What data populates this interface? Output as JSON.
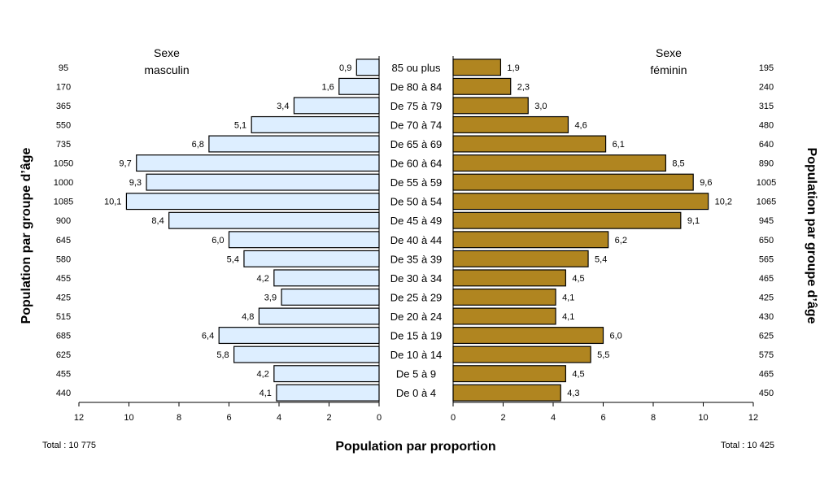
{
  "chart_data": {
    "type": "bar",
    "subtype": "population-pyramid",
    "xlabel": "Population par proportion",
    "ylabel_left": "Population par groupe d’âge",
    "ylabel_right": "Population par groupe d’âge",
    "xlim": [
      0,
      12
    ],
    "x_ticks": [
      "0",
      "2",
      "4",
      "6",
      "8",
      "10",
      "12"
    ],
    "categories": [
      "85 ou plus",
      "De 80 à 84",
      "De 75 à 79",
      "De 70 à 74",
      "De 65 à 69",
      "De 60 à 64",
      "De 55 à 59",
      "De 50 à 54",
      "De 45 à 49",
      "De 40 à 44",
      "De 35 à 39",
      "De 30 à 34",
      "De 25 à 29",
      "De 20 à 24",
      "De 15 à 19",
      "De 10 à 14",
      "De 5 à 9",
      "De 0 à 4"
    ],
    "series": [
      {
        "name": "Sexe masculin",
        "side": "left",
        "color": "#ddeeff",
        "values": [
          0.9,
          1.6,
          3.4,
          5.1,
          6.8,
          9.7,
          9.3,
          10.1,
          8.4,
          6.0,
          5.4,
          4.2,
          3.9,
          4.8,
          6.4,
          5.8,
          4.2,
          4.1
        ],
        "value_labels": [
          "0,9",
          "1,6",
          "3,4",
          "5,1",
          "6,8",
          "9,7",
          "9,3",
          "10,1",
          "8,4",
          "6,0",
          "5,4",
          "4,2",
          "3,9",
          "4,8",
          "6,4",
          "5,8",
          "4,2",
          "4,1"
        ],
        "counts": [
          "95",
          "170",
          "365",
          "550",
          "735",
          "1050",
          "1000",
          "1085",
          "900",
          "645",
          "580",
          "455",
          "425",
          "515",
          "685",
          "625",
          "455",
          "440"
        ],
        "total": "Total : 10 775"
      },
      {
        "name": "Sexe féminin",
        "side": "right",
        "color": "#b08520",
        "values": [
          1.9,
          2.3,
          3.0,
          4.6,
          6.1,
          8.5,
          9.6,
          10.2,
          9.1,
          6.2,
          5.4,
          4.5,
          4.1,
          4.1,
          6.0,
          5.5,
          4.5,
          4.3
        ],
        "value_labels": [
          "1,9",
          "2,3",
          "3,0",
          "4,6",
          "6,1",
          "8,5",
          "9,6",
          "10,2",
          "9,1",
          "6,2",
          "5,4",
          "4,5",
          "4,1",
          "4,1",
          "6,0",
          "5,5",
          "4,5",
          "4,3"
        ],
        "counts": [
          "195",
          "240",
          "315",
          "480",
          "640",
          "890",
          "1005",
          "1065",
          "945",
          "650",
          "565",
          "465",
          "425",
          "430",
          "625",
          "575",
          "465",
          "450"
        ],
        "total": "Total : 10 425"
      }
    ],
    "headings": {
      "male": [
        "Sexe",
        "masculin"
      ],
      "female": [
        "Sexe",
        "féminin"
      ]
    }
  }
}
